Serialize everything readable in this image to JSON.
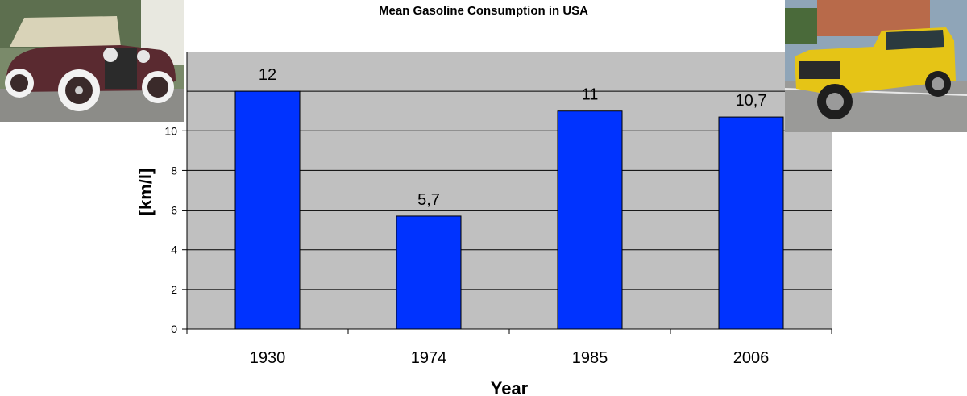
{
  "chart_data": {
    "type": "bar",
    "title": "Mean Gasoline Consumption in USA",
    "xlabel": "Year",
    "ylabel": "[km/l]",
    "categories": [
      "1930",
      "1974",
      "1985",
      "2006"
    ],
    "values": [
      12,
      5.7,
      11,
      10.7
    ],
    "data_labels": [
      "12",
      "5,7",
      "11",
      "10,7"
    ],
    "ylim": [
      0,
      14
    ],
    "yticks": [
      0,
      2,
      4,
      6,
      8,
      10
    ],
    "grid": true,
    "bar_color": "#0033ff",
    "plot_bg": "#c0c0c0"
  },
  "photos": {
    "left": "vintage-1930-car-photo",
    "right": "yellow-hummer-suv-photo"
  }
}
